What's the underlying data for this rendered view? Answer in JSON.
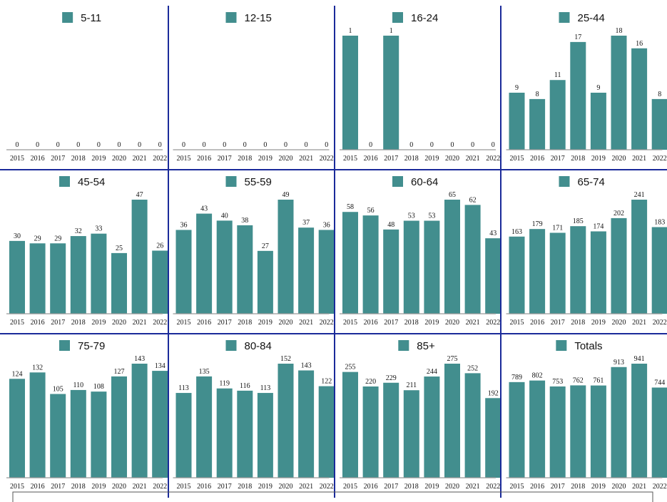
{
  "colors": {
    "bar": "#428e8e",
    "divider": "#1a2a9a",
    "axis": "#999999"
  },
  "chart_data": [
    {
      "type": "bar",
      "title": "5-11",
      "categories": [
        "2015",
        "2016",
        "2017",
        "2018",
        "2019",
        "2020",
        "2021",
        "2022"
      ],
      "values": [
        0,
        0,
        0,
        0,
        0,
        0,
        0,
        0
      ]
    },
    {
      "type": "bar",
      "title": "12-15",
      "categories": [
        "2015",
        "2016",
        "2017",
        "2018",
        "2019",
        "2020",
        "2021",
        "2022"
      ],
      "values": [
        0,
        0,
        0,
        0,
        0,
        0,
        0,
        0
      ]
    },
    {
      "type": "bar",
      "title": "16-24",
      "categories": [
        "2015",
        "2016",
        "2017",
        "2018",
        "2019",
        "2020",
        "2021",
        "2022"
      ],
      "values": [
        1,
        0,
        1,
        0,
        0,
        0,
        0,
        0
      ]
    },
    {
      "type": "bar",
      "title": "25-44",
      "categories": [
        "2015",
        "2016",
        "2017",
        "2018",
        "2019",
        "2020",
        "2021",
        "2022"
      ],
      "values": [
        9,
        8,
        11,
        17,
        9,
        18,
        16,
        8
      ]
    },
    {
      "type": "bar",
      "title": "45-54",
      "categories": [
        "2015",
        "2016",
        "2017",
        "2018",
        "2019",
        "2020",
        "2021",
        "2022"
      ],
      "values": [
        30,
        29,
        29,
        32,
        33,
        25,
        47,
        26
      ]
    },
    {
      "type": "bar",
      "title": "55-59",
      "categories": [
        "2015",
        "2016",
        "2017",
        "2018",
        "2019",
        "2020",
        "2021",
        "2022"
      ],
      "values": [
        36,
        43,
        40,
        38,
        27,
        49,
        37,
        36
      ]
    },
    {
      "type": "bar",
      "title": "60-64",
      "categories": [
        "2015",
        "2016",
        "2017",
        "2018",
        "2019",
        "2020",
        "2021",
        "2022"
      ],
      "values": [
        58,
        56,
        48,
        53,
        53,
        65,
        62,
        43
      ]
    },
    {
      "type": "bar",
      "title": "65-74",
      "categories": [
        "2015",
        "2016",
        "2017",
        "2018",
        "2019",
        "2020",
        "2021",
        "2022"
      ],
      "values": [
        163,
        179,
        171,
        185,
        174,
        202,
        241,
        183
      ]
    },
    {
      "type": "bar",
      "title": "75-79",
      "categories": [
        "2015",
        "2016",
        "2017",
        "2018",
        "2019",
        "2020",
        "2021",
        "2022"
      ],
      "values": [
        124,
        132,
        105,
        110,
        108,
        127,
        143,
        134
      ]
    },
    {
      "type": "bar",
      "title": "80-84",
      "categories": [
        "2015",
        "2016",
        "2017",
        "2018",
        "2019",
        "2020",
        "2021",
        "2022"
      ],
      "values": [
        113,
        135,
        119,
        116,
        113,
        152,
        143,
        122
      ]
    },
    {
      "type": "bar",
      "title": "85+",
      "categories": [
        "2015",
        "2016",
        "2017",
        "2018",
        "2019",
        "2020",
        "2021",
        "2022"
      ],
      "values": [
        255,
        220,
        229,
        211,
        244,
        275,
        252,
        192
      ]
    },
    {
      "type": "bar",
      "title": "Totals",
      "categories": [
        "2015",
        "2016",
        "2017",
        "2018",
        "2019",
        "2020",
        "2021",
        "2022"
      ],
      "values": [
        789,
        802,
        753,
        762,
        761,
        913,
        941,
        744
      ]
    }
  ]
}
